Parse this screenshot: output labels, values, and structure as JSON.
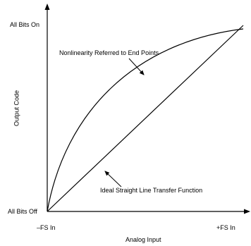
{
  "figure": {
    "y_axis_label": "Output Code",
    "x_axis_label": "Analog Input",
    "y_top_label": "All Bits On",
    "y_bottom_label": "All Bits Off",
    "x_left_label": "–FS In",
    "x_right_label": "+FS In",
    "annotations": {
      "curve": "Nonlinearity Referred to End Points",
      "line": "Ideal Straight Line Transfer Function"
    }
  }
}
